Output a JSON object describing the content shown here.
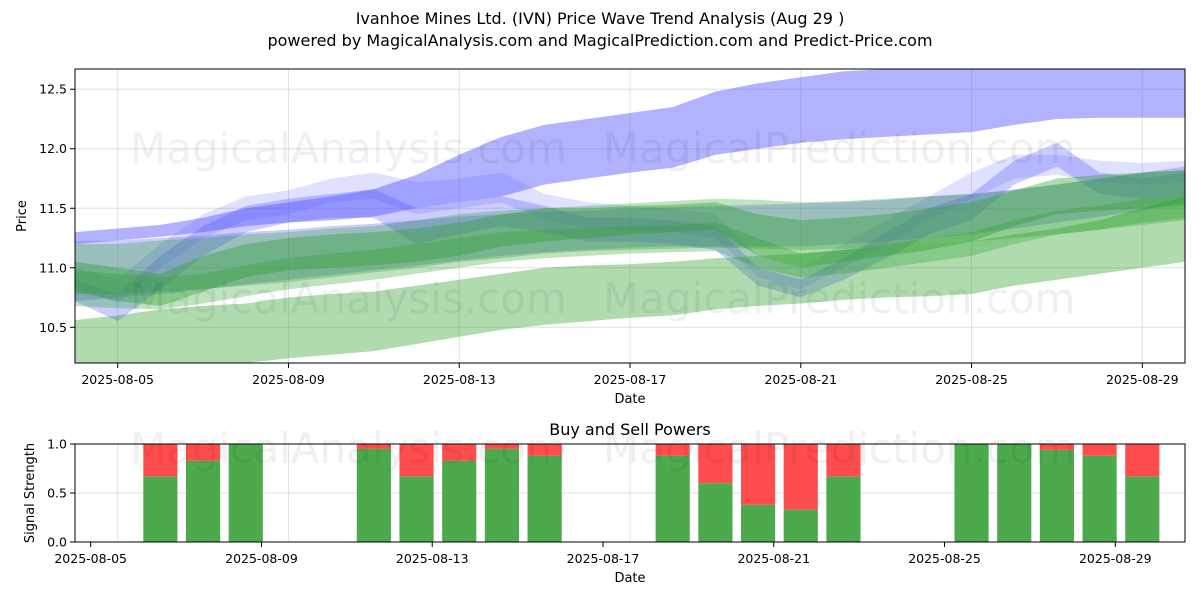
{
  "title_line1": "Ivanhoe Mines Ltd. (IVN) Price Wave Trend Analysis (Aug 29 )",
  "title_line2": "powered by MagicalAnalysis.com and MagicalPrediction.com and Predict-Price.com",
  "watermarks": [
    "MagicalAnalysis.com",
    "MagicalPrediction.com"
  ],
  "colors": {
    "blue_band": "#5555ff",
    "green_band": "#2ca02c",
    "buy": "#4caa4c",
    "sell": "#ff4d4d"
  },
  "chart_data": [
    {
      "type": "area",
      "title": "",
      "xlabel": "Date",
      "ylabel": "Price",
      "xlim": [
        "2025-08-04",
        "2025-08-30"
      ],
      "ylim": [
        10.2,
        12.67
      ],
      "x_ticks": [
        "2025-08-05",
        "2025-08-09",
        "2025-08-13",
        "2025-08-17",
        "2025-08-21",
        "2025-08-25",
        "2025-08-29"
      ],
      "y_ticks": [
        "10.5",
        "11.0",
        "11.5",
        "12.0",
        "12.5"
      ],
      "grid": true,
      "x": [
        "2025-08-04",
        "2025-08-05",
        "2025-08-06",
        "2025-08-07",
        "2025-08-08",
        "2025-08-09",
        "2025-08-10",
        "2025-08-11",
        "2025-08-12",
        "2025-08-13",
        "2025-08-14",
        "2025-08-15",
        "2025-08-16",
        "2025-08-17",
        "2025-08-18",
        "2025-08-19",
        "2025-08-20",
        "2025-08-21",
        "2025-08-22",
        "2025-08-23",
        "2025-08-24",
        "2025-08-25",
        "2025-08-26",
        "2025-08-27",
        "2025-08-28",
        "2025-08-29",
        "2025-08-30"
      ],
      "series": [
        {
          "color": "blue",
          "opacity": 0.45,
          "upper": [
            11.3,
            11.33,
            11.36,
            11.42,
            11.5,
            11.55,
            11.6,
            11.66,
            11.78,
            11.95,
            12.1,
            12.2,
            12.25,
            12.3,
            12.35,
            12.48,
            12.55,
            12.6,
            12.65,
            12.67,
            12.67,
            12.67,
            12.67,
            12.67,
            12.67,
            12.67,
            12.67
          ],
          "lower": [
            11.2,
            11.23,
            11.26,
            11.3,
            11.35,
            11.38,
            11.4,
            11.43,
            11.5,
            11.55,
            11.6,
            11.7,
            11.75,
            11.8,
            11.84,
            11.95,
            12.0,
            12.05,
            12.08,
            12.1,
            12.12,
            12.14,
            12.2,
            12.25,
            12.26,
            12.26,
            12.26
          ]
        },
        {
          "color": "blue",
          "opacity": 0.3,
          "upper": [
            10.9,
            10.78,
            11.1,
            11.35,
            11.52,
            11.58,
            11.62,
            11.66,
            11.5,
            11.55,
            11.6,
            11.52,
            11.42,
            11.42,
            11.4,
            11.35,
            11.0,
            10.9,
            11.08,
            11.3,
            11.5,
            11.62,
            11.9,
            12.05,
            11.8,
            11.75,
            11.8
          ],
          "lower": [
            10.72,
            10.55,
            10.82,
            11.1,
            11.3,
            11.38,
            11.42,
            11.42,
            11.2,
            11.28,
            11.35,
            11.3,
            11.22,
            11.22,
            11.2,
            11.15,
            10.85,
            10.75,
            10.9,
            11.08,
            11.28,
            11.4,
            11.7,
            11.85,
            11.62,
            11.58,
            11.62
          ]
        },
        {
          "color": "blue",
          "opacity": 0.18,
          "upper": [
            11.0,
            10.9,
            11.2,
            11.45,
            11.6,
            11.65,
            11.75,
            11.8,
            11.72,
            11.75,
            11.8,
            11.62,
            11.55,
            11.52,
            11.5,
            11.45,
            11.1,
            11.0,
            11.2,
            11.4,
            11.6,
            11.8,
            11.95,
            11.95,
            11.9,
            11.88,
            11.9
          ],
          "lower": [
            10.85,
            10.7,
            11.0,
            11.25,
            11.4,
            11.45,
            11.55,
            11.58,
            11.45,
            11.5,
            11.55,
            11.4,
            11.33,
            11.32,
            11.3,
            11.25,
            10.92,
            10.82,
            11.0,
            11.2,
            11.4,
            11.58,
            11.75,
            11.78,
            11.72,
            11.7,
            11.72
          ]
        },
        {
          "color": "blue",
          "opacity": 0.3,
          "upper": [
            11.22,
            11.23,
            11.25,
            11.27,
            11.3,
            11.32,
            11.35,
            11.37,
            11.4,
            11.43,
            11.45,
            11.47,
            11.48,
            11.5,
            11.51,
            11.52,
            11.53,
            11.54,
            11.55,
            11.57,
            11.6,
            11.62,
            11.66,
            11.7,
            11.75,
            11.8,
            11.85
          ],
          "lower": [
            10.72,
            10.75,
            10.78,
            10.82,
            10.86,
            10.9,
            10.94,
            10.98,
            11.02,
            11.06,
            11.1,
            11.13,
            11.15,
            11.17,
            11.18,
            11.18,
            11.18,
            11.18,
            11.2,
            11.22,
            11.25,
            11.28,
            11.33,
            11.38,
            11.43,
            11.48,
            11.55
          ]
        },
        {
          "color": "green",
          "opacity": 0.38,
          "upper": [
            10.56,
            10.6,
            10.65,
            10.68,
            10.7,
            10.75,
            10.78,
            10.8,
            10.85,
            10.9,
            10.95,
            11.0,
            11.02,
            11.03,
            11.05,
            11.08,
            11.1,
            11.12,
            11.15,
            11.18,
            11.2,
            11.22,
            11.28,
            11.33,
            11.4,
            11.5,
            11.6
          ],
          "lower": [
            10.05,
            10.1,
            10.15,
            10.18,
            10.2,
            10.24,
            10.27,
            10.3,
            10.36,
            10.42,
            10.48,
            10.52,
            10.55,
            10.58,
            10.6,
            10.65,
            10.68,
            10.7,
            10.73,
            10.75,
            10.76,
            10.78,
            10.85,
            10.9,
            10.95,
            11.0,
            11.05
          ]
        },
        {
          "color": "green",
          "opacity": 0.38,
          "upper": [
            11.05,
            11.0,
            10.95,
            11.1,
            11.2,
            11.25,
            11.28,
            11.3,
            11.33,
            11.38,
            11.45,
            11.5,
            11.5,
            11.52,
            11.53,
            11.55,
            11.45,
            11.4,
            11.42,
            11.45,
            11.5,
            11.55,
            11.65,
            11.75,
            11.78,
            11.8,
            11.82
          ],
          "lower": [
            10.8,
            10.72,
            10.68,
            10.8,
            10.92,
            10.98,
            11.0,
            11.02,
            11.05,
            11.1,
            11.18,
            11.22,
            11.25,
            11.28,
            11.3,
            11.32,
            11.1,
            11.0,
            11.05,
            11.1,
            11.15,
            11.22,
            11.35,
            11.45,
            11.48,
            11.5,
            11.52
          ]
        },
        {
          "color": "green",
          "opacity": 0.3,
          "upper": [
            11.2,
            11.2,
            11.23,
            11.25,
            11.28,
            11.3,
            11.33,
            11.35,
            11.4,
            11.45,
            11.48,
            11.5,
            11.52,
            11.54,
            11.56,
            11.58,
            11.57,
            11.55,
            11.56,
            11.58,
            11.6,
            11.62,
            11.65,
            11.7,
            11.75,
            11.8,
            11.82
          ],
          "lower": [
            10.78,
            10.78,
            10.8,
            10.82,
            10.85,
            10.88,
            10.92,
            10.96,
            11.0,
            11.05,
            11.08,
            11.12,
            11.14,
            11.15,
            11.16,
            11.17,
            11.16,
            11.15,
            11.16,
            11.18,
            11.2,
            11.22,
            11.25,
            11.28,
            11.32,
            11.36,
            11.4
          ]
        },
        {
          "color": "green",
          "opacity": 0.3,
          "upper": [
            10.98,
            10.95,
            10.92,
            10.95,
            11.02,
            11.08,
            11.12,
            11.15,
            11.2,
            11.25,
            11.3,
            11.32,
            11.33,
            11.35,
            11.36,
            11.38,
            11.25,
            11.12,
            11.15,
            11.2,
            11.25,
            11.3,
            11.4,
            11.48,
            11.52,
            11.58,
            11.62
          ],
          "lower": [
            10.68,
            10.66,
            10.65,
            10.7,
            10.76,
            10.82,
            10.86,
            10.9,
            10.95,
            11.0,
            11.05,
            11.08,
            11.1,
            11.12,
            11.13,
            11.14,
            11.0,
            10.92,
            10.95,
            11.0,
            11.05,
            11.1,
            11.2,
            11.28,
            11.32,
            11.38,
            11.42
          ]
        }
      ]
    },
    {
      "type": "bar",
      "title": "Buy and Sell Powers",
      "xlabel": "Date",
      "ylabel": "Signal Strength",
      "ylim": [
        0,
        1.0
      ],
      "y_ticks": [
        "0.0",
        "0.5",
        "1.0"
      ],
      "x_ticks": [
        "2025-08-05",
        "2025-08-09",
        "2025-08-13",
        "2025-08-17",
        "2025-08-21",
        "2025-08-25",
        "2025-08-29"
      ],
      "categories": [
        "2025-08-06",
        "2025-08-07",
        "2025-08-08",
        "2025-08-11",
        "2025-08-12",
        "2025-08-13",
        "2025-08-14",
        "2025-08-15",
        "2025-08-18",
        "2025-08-19",
        "2025-08-20",
        "2025-08-21",
        "2025-08-22",
        "2025-08-25",
        "2025-08-26",
        "2025-08-27",
        "2025-08-28",
        "2025-08-29"
      ],
      "series": [
        {
          "name": "Buy",
          "values": [
            0.67,
            0.83,
            1.0,
            0.95,
            0.67,
            0.83,
            0.95,
            0.88,
            0.88,
            0.6,
            0.38,
            0.33,
            0.67,
            1.0,
            1.0,
            0.94,
            0.88,
            0.67
          ]
        },
        {
          "name": "Sell",
          "values": [
            0.33,
            0.17,
            0.0,
            0.05,
            0.33,
            0.17,
            0.05,
            0.12,
            0.12,
            0.4,
            0.62,
            0.67,
            0.33,
            0.0,
            0.0,
            0.06,
            0.12,
            0.33
          ]
        }
      ]
    }
  ]
}
